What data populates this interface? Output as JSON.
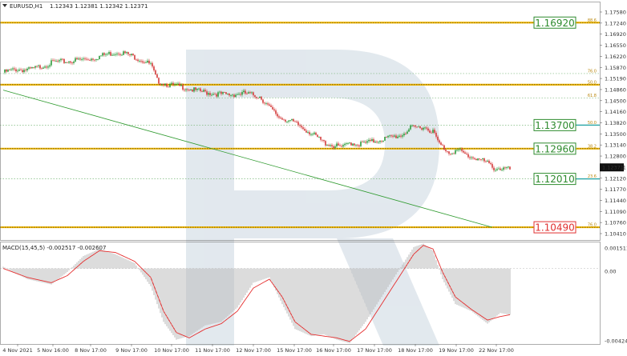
{
  "header": {
    "symbol": "EURUSD,H1",
    "ohlc": "1.12343 1.12381 1.12342 1.12371",
    "macd": "MACD(15,45,5) -0.002517 -0.002607"
  },
  "chart_data": [
    {
      "type": "candlestick",
      "ylim": [
        1.1009,
        1.1758
      ],
      "yticks": [
        "1.17580",
        "1.17240",
        "1.16920",
        "1.16550",
        "1.16220",
        "1.15870",
        "1.15190",
        "1.14860",
        "1.14500",
        "1.14160",
        "1.13820",
        "1.13500",
        "1.13140",
        "1.12800",
        "1.12371",
        "1.12120",
        "1.11770",
        "1.11440",
        "1.11090",
        "1.10760",
        "1.10410"
      ],
      "xticks": [
        "4 Nov 2021",
        "5 Nov 16:00",
        "8 Nov 17:00",
        "9 Nov 17:00",
        "10 Nov 17:00",
        "11 Nov 17:00",
        "12 Nov 17:00",
        "15 Nov 17:00",
        "16 Nov 17:00",
        "17 Nov 17:00",
        "18 Nov 17:00",
        "19 Nov 17:00",
        "22 Nov 17:00"
      ],
      "path_anchors": [
        [
          0,
          1.1535
        ],
        [
          8,
          1.1545
        ],
        [
          16,
          1.1543
        ],
        [
          24,
          1.1555
        ],
        [
          32,
          1.1568
        ],
        [
          40,
          1.157
        ],
        [
          48,
          1.1575
        ],
        [
          56,
          1.158
        ],
        [
          64,
          1.1592
        ],
        [
          72,
          1.16
        ],
        [
          76,
          1.1595
        ],
        [
          84,
          1.158
        ],
        [
          92,
          1.156
        ],
        [
          96,
          1.151
        ],
        [
          104,
          1.1495
        ],
        [
          112,
          1.149
        ],
        [
          120,
          1.1478
        ],
        [
          130,
          1.147
        ],
        [
          140,
          1.1465
        ],
        [
          150,
          1.147
        ],
        [
          160,
          1.146
        ],
        [
          166,
          1.1425
        ],
        [
          172,
          1.1395
        ],
        [
          178,
          1.1385
        ],
        [
          184,
          1.137
        ],
        [
          192,
          1.1345
        ],
        [
          200,
          1.1315
        ],
        [
          206,
          1.1305
        ],
        [
          212,
          1.13
        ],
        [
          216,
          1.1315
        ],
        [
          222,
          1.131
        ],
        [
          230,
          1.1318
        ],
        [
          240,
          1.133
        ],
        [
          248,
          1.1338
        ],
        [
          254,
          1.136
        ],
        [
          262,
          1.1365
        ],
        [
          268,
          1.135
        ],
        [
          272,
          1.131
        ],
        [
          278,
          1.1285
        ],
        [
          284,
          1.129
        ],
        [
          290,
          1.1272
        ],
        [
          296,
          1.1265
        ],
        [
          302,
          1.125
        ],
        [
          306,
          1.1235
        ],
        [
          312,
          1.1233
        ],
        [
          316,
          1.123
        ]
      ],
      "fib_levels": [
        {
          "label": "88.6",
          "price": 1.1692,
          "style": "solid",
          "badge": "1.16920",
          "badge_color": "#2e8b2e"
        },
        {
          "label": "76.0",
          "price": 1.1532,
          "style": "dotted"
        },
        {
          "label": "50.0",
          "price": 1.1497,
          "style": "solid"
        },
        {
          "label": "61.8",
          "price": 1.1455,
          "style": "dotted"
        },
        {
          "label": "50.0",
          "price": 1.137,
          "style": "dotted",
          "badge": "1.13700",
          "badge_color": "#2e8b2e"
        },
        {
          "label": "38.2",
          "price": 1.1296,
          "style": "solid",
          "badge": "1.12960",
          "badge_color": "#2e8b2e"
        },
        {
          "label": "23.6",
          "price": 1.1201,
          "style": "dotted",
          "badge": "1.12010",
          "badge_color": "#2e8b2e"
        },
        {
          "label": "76.0",
          "price": 1.1049,
          "style": "solid",
          "badge": "1.10490",
          "badge_color": "#e03030"
        }
      ],
      "trendline": {
        "from": [
          0,
          1.148
        ],
        "to": [
          305,
          1.1049
        ]
      },
      "last_price": "1.12371"
    },
    {
      "type": "histogram+line",
      "name": "MACD(15,45,5)",
      "ylim": [
        -0.004244,
        0.001511
      ],
      "yticks": [
        "0.001511",
        "0.00",
        "-0.004244"
      ],
      "hist_anchors": [
        [
          0,
          0.0001
        ],
        [
          15,
          -0.0006
        ],
        [
          30,
          -0.0009
        ],
        [
          40,
          -0.0002
        ],
        [
          50,
          0.0007
        ],
        [
          60,
          0.0011
        ],
        [
          70,
          0.0008
        ],
        [
          82,
          0.0003
        ],
        [
          92,
          -0.001
        ],
        [
          100,
          -0.003
        ],
        [
          108,
          -0.004
        ],
        [
          116,
          -0.0038
        ],
        [
          126,
          -0.0032
        ],
        [
          136,
          -0.003
        ],
        [
          146,
          -0.0022
        ],
        [
          156,
          -0.0008
        ],
        [
          166,
          -0.0005
        ],
        [
          174,
          -0.002
        ],
        [
          182,
          -0.0034
        ],
        [
          192,
          -0.0038
        ],
        [
          200,
          -0.0037
        ],
        [
          208,
          -0.004
        ],
        [
          216,
          -0.0042
        ],
        [
          226,
          -0.003
        ],
        [
          236,
          -0.0016
        ],
        [
          246,
          -0.0002
        ],
        [
          256,
          0.0012
        ],
        [
          262,
          0.0014
        ],
        [
          268,
          0.001
        ],
        [
          274,
          -0.0006
        ],
        [
          282,
          -0.002
        ],
        [
          292,
          -0.0024
        ],
        [
          302,
          -0.0031
        ],
        [
          310,
          -0.0025
        ],
        [
          316,
          -0.0026
        ]
      ],
      "signal_anchors": [
        [
          0,
          0.0
        ],
        [
          15,
          -0.0005
        ],
        [
          30,
          -0.0008
        ],
        [
          40,
          -0.0004
        ],
        [
          50,
          0.0004
        ],
        [
          60,
          0.001
        ],
        [
          70,
          0.0009
        ],
        [
          82,
          0.0004
        ],
        [
          92,
          -0.0005
        ],
        [
          100,
          -0.0024
        ],
        [
          108,
          -0.0036
        ],
        [
          116,
          -0.0039
        ],
        [
          126,
          -0.0034
        ],
        [
          136,
          -0.0031
        ],
        [
          146,
          -0.0024
        ],
        [
          156,
          -0.0011
        ],
        [
          166,
          -0.0006
        ],
        [
          174,
          -0.0016
        ],
        [
          182,
          -0.003
        ],
        [
          192,
          -0.0037
        ],
        [
          200,
          -0.0038
        ],
        [
          208,
          -0.0039
        ],
        [
          216,
          -0.0041
        ],
        [
          226,
          -0.0034
        ],
        [
          236,
          -0.002
        ],
        [
          246,
          -0.0006
        ],
        [
          256,
          0.0008
        ],
        [
          262,
          0.0013
        ],
        [
          268,
          0.0011
        ],
        [
          274,
          -0.0002
        ],
        [
          282,
          -0.0016
        ],
        [
          292,
          -0.0023
        ],
        [
          302,
          -0.0029
        ],
        [
          310,
          -0.0027
        ],
        [
          316,
          -0.0026
        ]
      ]
    }
  ]
}
